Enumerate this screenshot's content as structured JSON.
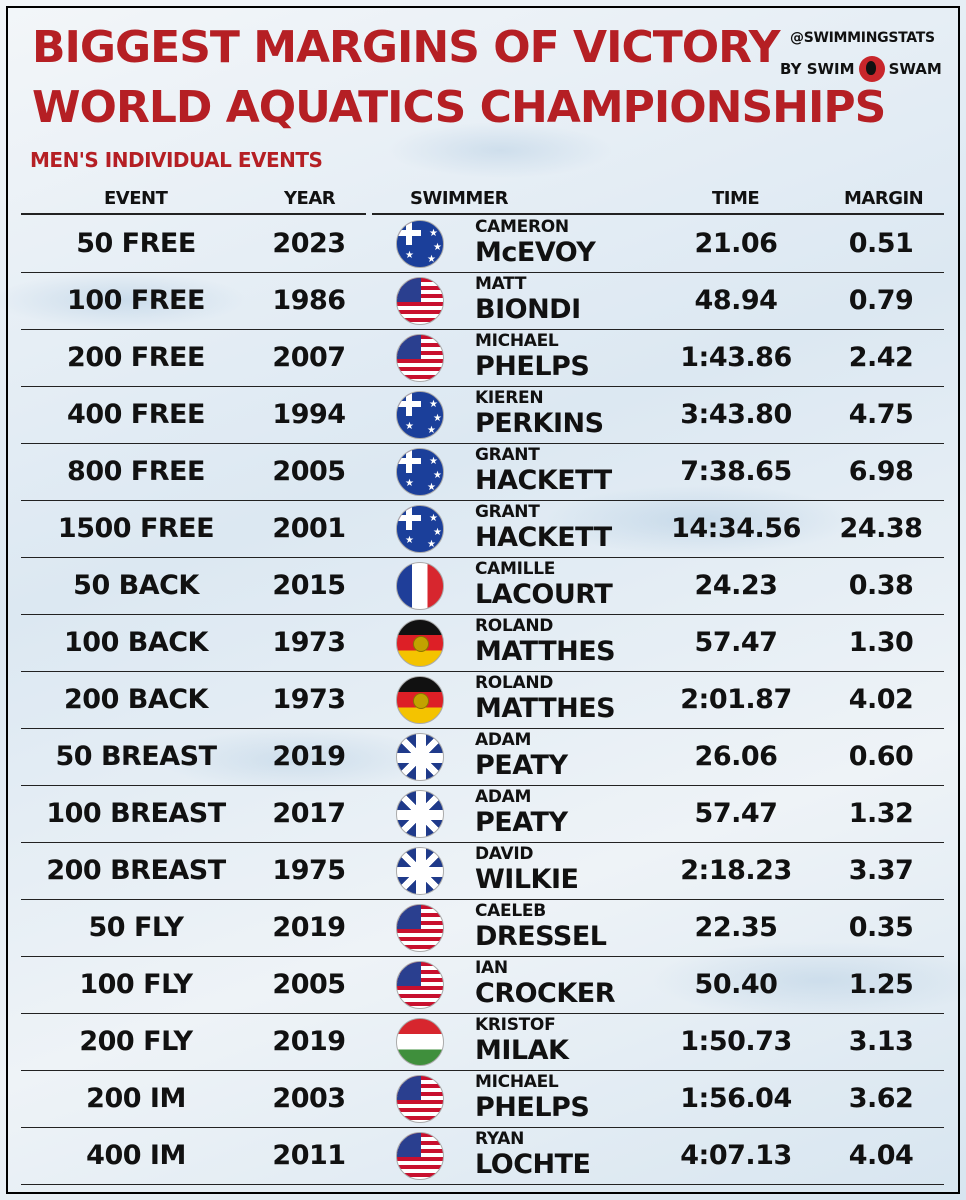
{
  "title_line1": "BIGGEST MARGINS OF VICTORY",
  "title_line2": "WORLD AQUATICS CHAMPIONSHIPS",
  "subtitle": "MEN'S INDIVIDUAL EVENTS",
  "brand_handle": "@SWIMMINGSTATS",
  "brand_by": "BY SWIM",
  "brand_name": "SWAM",
  "columns": {
    "event": "EVENT",
    "year": "YEAR",
    "swimmer": "SWIMMER",
    "time": "TIME",
    "margin": "MARGIN"
  },
  "rows": [
    {
      "event": "50 FREE",
      "year": "2023",
      "flag": "australia-flag",
      "first": "CAMERON",
      "last": "McEVOY",
      "time": "21.06",
      "margin": "0.51"
    },
    {
      "event": "100 FREE",
      "year": "1986",
      "flag": "usa-flag",
      "first": "MATT",
      "last": "BIONDI",
      "time": "48.94",
      "margin": "0.79"
    },
    {
      "event": "200 FREE",
      "year": "2007",
      "flag": "usa-flag",
      "first": "MICHAEL",
      "last": "PHELPS",
      "time": "1:43.86",
      "margin": "2.42"
    },
    {
      "event": "400 FREE",
      "year": "1994",
      "flag": "australia-flag",
      "first": "KIEREN",
      "last": "PERKINS",
      "time": "3:43.80",
      "margin": "4.75"
    },
    {
      "event": "800 FREE",
      "year": "2005",
      "flag": "australia-flag",
      "first": "GRANT",
      "last": "HACKETT",
      "time": "7:38.65",
      "margin": "6.98"
    },
    {
      "event": "1500 FREE",
      "year": "2001",
      "flag": "australia-flag",
      "first": "GRANT",
      "last": "HACKETT",
      "time": "14:34.56",
      "margin": "24.38"
    },
    {
      "event": "50 BACK",
      "year": "2015",
      "flag": "france-flag",
      "first": "CAMILLE",
      "last": "LACOURT",
      "time": "24.23",
      "margin": "0.38"
    },
    {
      "event": "100 BACK",
      "year": "1973",
      "flag": "east-germany-flag",
      "first": "ROLAND",
      "last": "MATTHES",
      "time": "57.47",
      "margin": "1.30"
    },
    {
      "event": "200 BACK",
      "year": "1973",
      "flag": "east-germany-flag",
      "first": "ROLAND",
      "last": "MATTHES",
      "time": "2:01.87",
      "margin": "4.02"
    },
    {
      "event": "50 BREAST",
      "year": "2019",
      "flag": "great-britain-flag",
      "first": "ADAM",
      "last": "PEATY",
      "time": "26.06",
      "margin": "0.60"
    },
    {
      "event": "100 BREAST",
      "year": "2017",
      "flag": "great-britain-flag",
      "first": "ADAM",
      "last": "PEATY",
      "time": "57.47",
      "margin": "1.32"
    },
    {
      "event": "200 BREAST",
      "year": "1975",
      "flag": "great-britain-flag",
      "first": "DAVID",
      "last": "WILKIE",
      "time": "2:18.23",
      "margin": "3.37"
    },
    {
      "event": "50 FLY",
      "year": "2019",
      "flag": "usa-flag",
      "first": "CAELEB",
      "last": "DRESSEL",
      "time": "22.35",
      "margin": "0.35"
    },
    {
      "event": "100 FLY",
      "year": "2005",
      "flag": "usa-flag",
      "first": "IAN",
      "last": "CROCKER",
      "time": "50.40",
      "margin": "1.25"
    },
    {
      "event": "200 FLY",
      "year": "2019",
      "flag": "hungary-flag",
      "first": "KRISTOF",
      "last": "MILAK",
      "time": "1:50.73",
      "margin": "3.13"
    },
    {
      "event": "200 IM",
      "year": "2003",
      "flag": "usa-flag",
      "first": "MICHAEL",
      "last": "PHELPS",
      "time": "1:56.04",
      "margin": "3.62"
    },
    {
      "event": "400 IM",
      "year": "2011",
      "flag": "usa-flag",
      "first": "RYAN",
      "last": "LOCHTE",
      "time": "4:07.13",
      "margin": "4.04"
    }
  ]
}
